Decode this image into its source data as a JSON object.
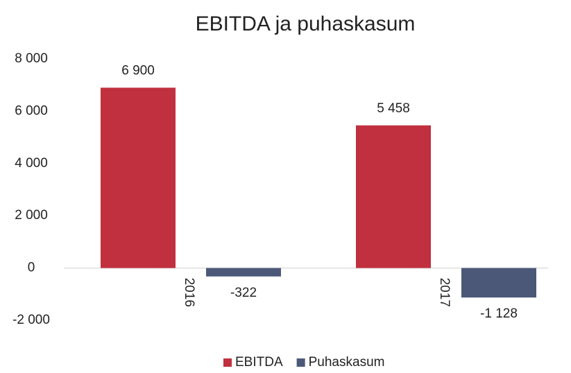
{
  "chart_data": {
    "type": "bar",
    "title": "EBITDA ja puhaskasum",
    "categories": [
      "2016",
      "2017"
    ],
    "series": [
      {
        "name": "EBITDA",
        "color": "#c0303e",
        "values": [
          6900,
          5458
        ],
        "value_labels": [
          "6 900",
          "5 458"
        ]
      },
      {
        "name": "Puhaskasum",
        "color": "#4b5878",
        "values": [
          -322,
          -1128
        ],
        "value_labels": [
          "-322",
          "-1 128"
        ]
      }
    ],
    "ylim": [
      -2000,
      8000
    ],
    "yticks": [
      {
        "value": -2000,
        "label": "-2 000"
      },
      0,
      {
        "value": 2000,
        "label": "2 000"
      },
      {
        "value": 4000,
        "label": "4 000"
      },
      {
        "value": 6000,
        "label": "6 000"
      },
      {
        "value": 8000,
        "label": "8 000"
      }
    ],
    "legend": "bottom"
  }
}
